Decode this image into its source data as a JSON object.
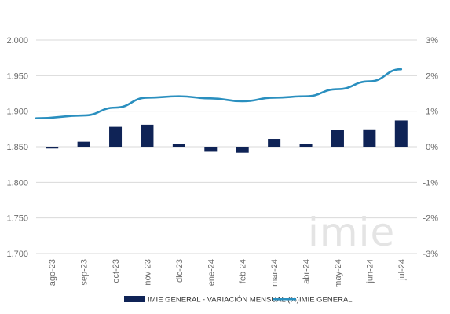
{
  "chart_data": {
    "type": "bar+line",
    "categories": [
      "ago-23",
      "sep-23",
      "oct-23",
      "nov-23",
      "dic-23",
      "ene-24",
      "feb-24",
      "mar-24",
      "abr-24",
      "may-24",
      "jun-24",
      "jul-24"
    ],
    "series": [
      {
        "name": "IMIE GENERAL - VARIACIÓN MENSUAL (%)",
        "type": "bar",
        "axis": "right",
        "values": [
          -0.05,
          0.14,
          0.56,
          0.62,
          0.07,
          -0.12,
          -0.17,
          0.22,
          0.07,
          0.47,
          0.49,
          0.74
        ],
        "color": "#0f2356"
      },
      {
        "name": "IMIE GENERAL",
        "type": "line",
        "axis": "left",
        "values": [
          1890,
          1894,
          1905,
          1919,
          1921,
          1918,
          1914,
          1919,
          1921,
          1931,
          1942,
          1959
        ],
        "color": "#2a8fbf"
      }
    ],
    "y_left": {
      "min": 1700,
      "max": 2000,
      "ticks": [
        "1.700",
        "1.750",
        "1.800",
        "1.850",
        "1.900",
        "1.950",
        "2.000"
      ]
    },
    "y_right": {
      "min": -3,
      "max": 3,
      "ticks": [
        "-3%",
        "-2%",
        "-1%",
        "0%",
        "1%",
        "2%",
        "3%"
      ]
    },
    "grid": true,
    "legend": "bottom",
    "watermark": "imie"
  }
}
